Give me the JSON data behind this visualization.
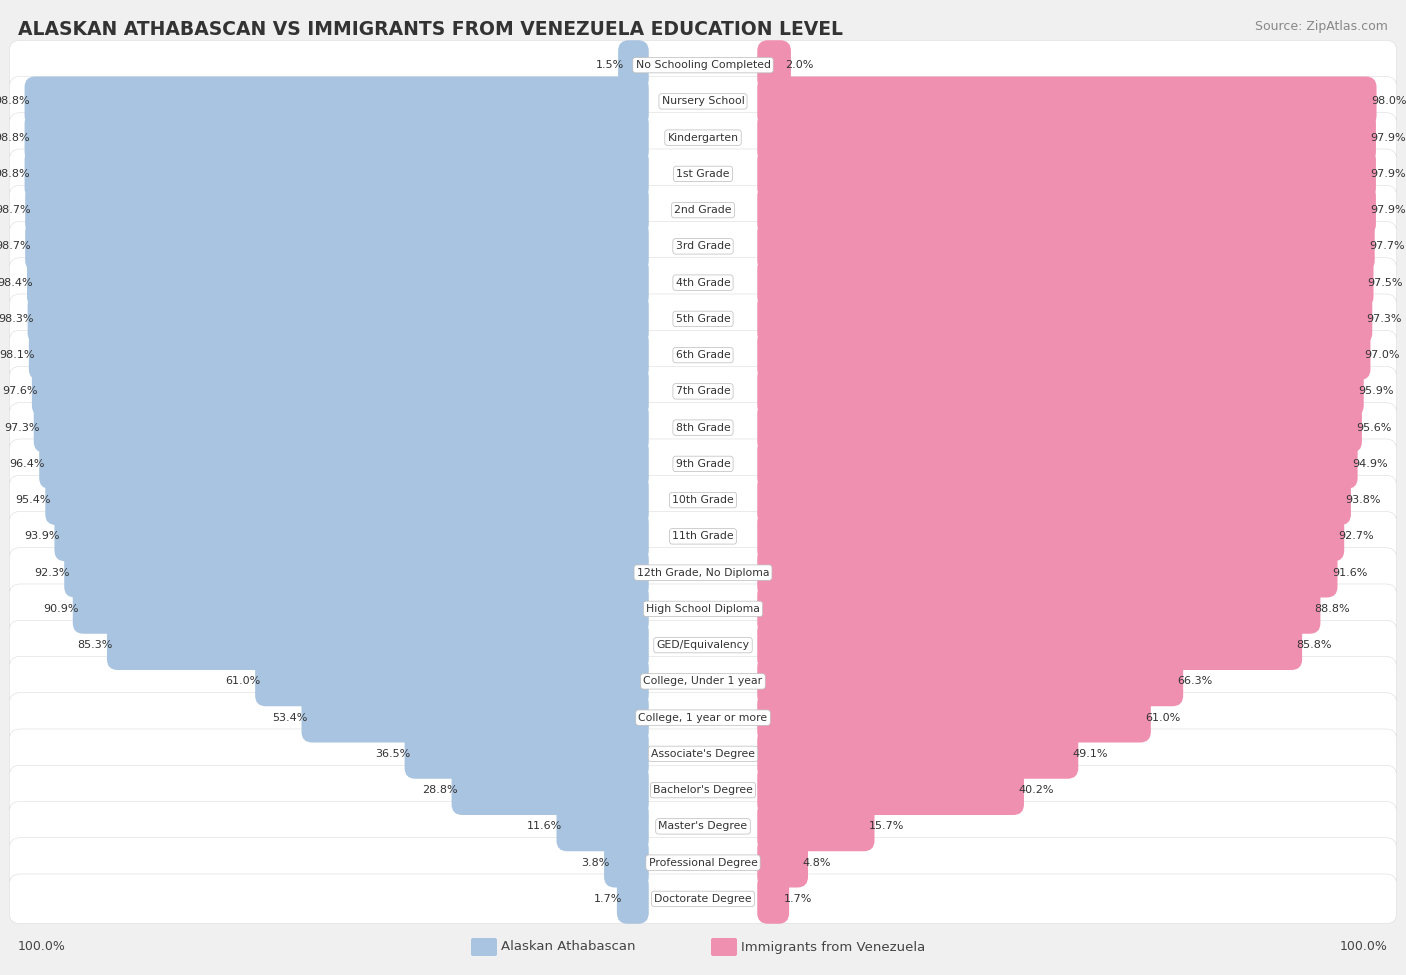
{
  "title": "ALASKAN ATHABASCAN VS IMMIGRANTS FROM VENEZUELA EDUCATION LEVEL",
  "source": "Source: ZipAtlas.com",
  "categories": [
    "No Schooling Completed",
    "Nursery School",
    "Kindergarten",
    "1st Grade",
    "2nd Grade",
    "3rd Grade",
    "4th Grade",
    "5th Grade",
    "6th Grade",
    "7th Grade",
    "8th Grade",
    "9th Grade",
    "10th Grade",
    "11th Grade",
    "12th Grade, No Diploma",
    "High School Diploma",
    "GED/Equivalency",
    "College, Under 1 year",
    "College, 1 year or more",
    "Associate's Degree",
    "Bachelor's Degree",
    "Master's Degree",
    "Professional Degree",
    "Doctorate Degree"
  ],
  "alaskan": [
    1.5,
    98.8,
    98.8,
    98.8,
    98.7,
    98.7,
    98.4,
    98.3,
    98.1,
    97.6,
    97.3,
    96.4,
    95.4,
    93.9,
    92.3,
    90.9,
    85.3,
    61.0,
    53.4,
    36.5,
    28.8,
    11.6,
    3.8,
    1.7
  ],
  "venezuela": [
    2.0,
    98.0,
    97.9,
    97.9,
    97.9,
    97.7,
    97.5,
    97.3,
    97.0,
    95.9,
    95.6,
    94.9,
    93.8,
    92.7,
    91.6,
    88.8,
    85.8,
    66.3,
    61.0,
    49.1,
    40.2,
    15.7,
    4.8,
    1.7
  ],
  "color_alaskan": "#a8c4e0",
  "color_venezuela": "#f090b0",
  "background_color": "#f0f0f0",
  "legend_label_alaskan": "Alaskan Athabascan",
  "legend_label_venezuela": "Immigrants from Venezuela",
  "left_footer": "100.0%",
  "right_footer": "100.0%"
}
